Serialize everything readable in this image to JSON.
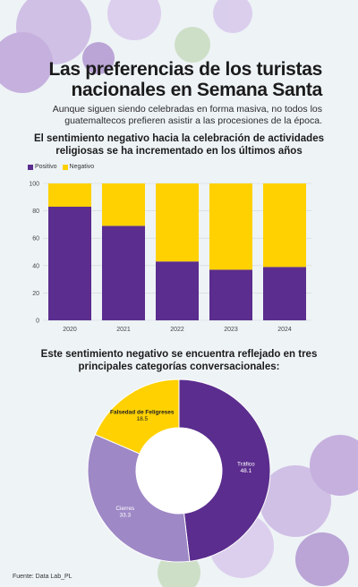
{
  "header": {
    "title": "Las preferencias de los turistas nacionales en Semana Santa",
    "subtitle": "Aunque siguen siendo celebradas en forma masiva, no todos los guatemaltecos prefieren asistir a las procesiones de la época."
  },
  "bar_section": {
    "heading": "El sentimiento negativo hacia la celebración de actividades religiosas se ha incrementado en los últimos años"
  },
  "donut_section": {
    "heading": "Este sentimiento negativo se encuentra reflejado en tres principales categorías conversacionales:"
  },
  "footer": {
    "source": "Fuente: Data Lab_PL"
  },
  "colors": {
    "positivo": "#5b2d8e",
    "negativo": "#ffd100",
    "trafico": "#5b2d8e",
    "cierres": "#9e88c6",
    "falsedad": "#ffd100"
  },
  "chart_data": [
    {
      "type": "bar",
      "stacked": true,
      "categories": [
        "2020",
        "2021",
        "2022",
        "2023",
        "2024"
      ],
      "series": [
        {
          "name": "Positivo",
          "values": [
            83,
            69,
            43,
            37,
            39
          ]
        },
        {
          "name": "Negativo",
          "values": [
            17,
            31,
            57,
            63,
            61
          ]
        }
      ],
      "ylim": [
        0,
        100
      ],
      "yticks": [
        "0",
        "20",
        "40",
        "60",
        "80",
        "100"
      ],
      "legend": "top-left",
      "grid": true
    },
    {
      "type": "pie",
      "donut": true,
      "labels": [
        "Tráfico",
        "Cierres",
        "Falsedad de Feligreses"
      ],
      "values": [
        48.1,
        33.3,
        18.5
      ],
      "value_labels": [
        "48.1",
        "33.3",
        "18.5"
      ]
    }
  ]
}
